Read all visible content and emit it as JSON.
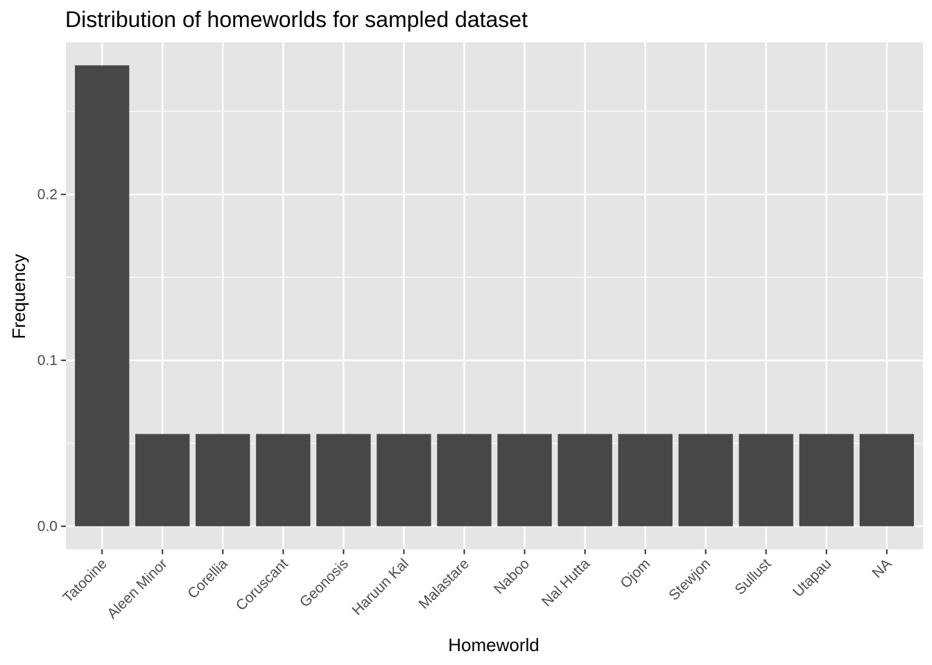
{
  "chart_data": {
    "type": "bar",
    "title": "Distribution of homeworlds for sampled dataset",
    "xlabel": "Homeworld",
    "ylabel": "Frequency",
    "categories": [
      "Tatooine",
      "Aleen Minor",
      "Corellia",
      "Coruscant",
      "Geonosis",
      "Haruun Kal",
      "Malastare",
      "Naboo",
      "Nal Hutta",
      "Ojom",
      "Stewjon",
      "Sullust",
      "Utapau",
      "NA"
    ],
    "values": [
      0.2778,
      0.0556,
      0.0556,
      0.0556,
      0.0556,
      0.0556,
      0.0556,
      0.0556,
      0.0556,
      0.0556,
      0.0556,
      0.0556,
      0.0556,
      0.0556
    ],
    "ylim": [
      -0.0139,
      0.2917
    ],
    "yticks": [
      0.0,
      0.1,
      0.2
    ],
    "ytick_labels": [
      "0.0",
      "0.1",
      "0.2"
    ],
    "grid": true,
    "legend": "none",
    "colors": {
      "bar": "#474747",
      "panel": "#e5e5e5",
      "grid": "#ffffff",
      "tick_text": "#4d4d4d",
      "tick_mark": "#333333"
    }
  }
}
